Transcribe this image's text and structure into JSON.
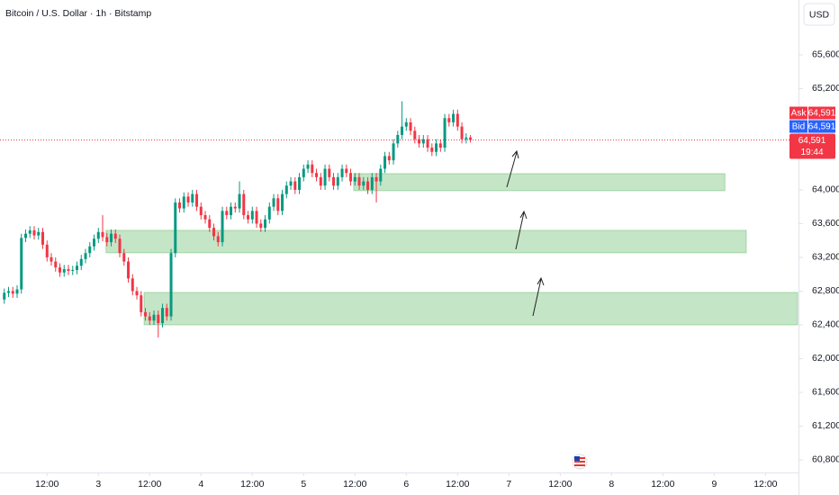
{
  "chart_data": {
    "type": "candlestick",
    "title": "Bitcoin / U.S. Dollar · 1h · Bitstamp",
    "currency": "USD",
    "up_color": "#089981",
    "down_color": "#f23645",
    "xlim": [
      1,
      187.5
    ],
    "ylim": [
      60650,
      66250
    ],
    "xticks": [
      {
        "value": 12,
        "label": "12:00"
      },
      {
        "value": 24,
        "label": "3"
      },
      {
        "value": 36,
        "label": "12:00"
      },
      {
        "value": 48,
        "label": "4"
      },
      {
        "value": 60,
        "label": "12:00"
      },
      {
        "value": 72,
        "label": "5"
      },
      {
        "value": 84,
        "label": "12:00"
      },
      {
        "value": 96,
        "label": "6"
      },
      {
        "value": 108,
        "label": "12:00"
      },
      {
        "value": 120,
        "label": "7"
      },
      {
        "value": 132,
        "label": "12:00"
      },
      {
        "value": 144,
        "label": "8"
      },
      {
        "value": 156,
        "label": "12:00"
      },
      {
        "value": 168,
        "label": "9"
      },
      {
        "value": 180,
        "label": "12:00"
      }
    ],
    "yticks": [
      {
        "value": 60800,
        "label": "60,800"
      },
      {
        "value": 61200,
        "label": "61,200"
      },
      {
        "value": 61600,
        "label": "61,600"
      },
      {
        "value": 62000,
        "label": "62,000"
      },
      {
        "value": 62400,
        "label": "62,400"
      },
      {
        "value": 62800,
        "label": "62,800"
      },
      {
        "value": 63200,
        "label": "63,200"
      },
      {
        "value": 63600,
        "label": "63,600"
      },
      {
        "value": 64000,
        "label": "64,000"
      },
      {
        "value": 65200,
        "label": "65,200"
      },
      {
        "value": 65600,
        "label": "65,600"
      }
    ],
    "x": [
      2,
      3,
      4,
      5,
      6,
      7,
      8,
      9,
      10,
      11,
      12,
      13,
      14,
      15,
      16,
      17,
      18,
      19,
      20,
      21,
      22,
      23,
      24,
      25,
      26,
      27,
      28,
      29,
      30,
      31,
      32,
      33,
      34,
      35,
      36,
      37,
      38,
      39,
      40,
      41,
      42,
      43,
      44,
      45,
      46,
      47,
      48,
      49,
      50,
      51,
      52,
      53,
      54,
      55,
      56,
      57,
      58,
      59,
      60,
      61,
      62,
      63,
      64,
      65,
      66,
      67,
      68,
      69,
      70,
      71,
      72,
      73,
      74,
      75,
      76,
      77,
      78,
      79,
      80,
      81,
      82,
      83,
      84,
      85,
      86,
      87,
      88,
      89,
      90,
      91,
      92,
      93,
      94,
      95,
      96,
      97,
      98,
      99,
      100,
      101,
      102,
      103,
      104,
      105,
      106,
      107,
      108,
      109,
      110,
      111
    ],
    "open": [
      62700,
      62780,
      62800,
      62770,
      62820,
      63430,
      63480,
      63520,
      63460,
      63500,
      63350,
      63200,
      63150,
      63080,
      63020,
      63060,
      63040,
      63050,
      63100,
      63180,
      63250,
      63330,
      63420,
      63500,
      63440,
      63380,
      63480,
      63420,
      63250,
      63150,
      62950,
      62800,
      62750,
      62550,
      62500,
      62450,
      62520,
      62420,
      62600,
      62500,
      63250,
      63850,
      63780,
      63920,
      63850,
      63950,
      63800,
      63700,
      63650,
      63550,
      63450,
      63380,
      63750,
      63700,
      63800,
      63780,
      63950,
      63700,
      63650,
      63750,
      63600,
      63550,
      63650,
      63800,
      63900,
      63750,
      63950,
      64050,
      64100,
      64000,
      64150,
      64250,
      64300,
      64200,
      64150,
      64050,
      64250,
      64150,
      64050,
      64150,
      64250,
      64200,
      64100,
      64150,
      64050,
      64100,
      64000,
      64150,
      64100,
      64250,
      64400,
      64350,
      64550,
      64650,
      64750,
      64800,
      64700,
      64600,
      64550,
      64600,
      64500,
      64450,
      64550,
      64500,
      64850,
      64800,
      64900,
      64750,
      64600,
      64620
    ],
    "high": [
      62830,
      62850,
      62850,
      62870,
      63480,
      63530,
      63570,
      63570,
      63550,
      63550,
      63400,
      63250,
      63200,
      63130,
      63110,
      63110,
      63100,
      63150,
      63230,
      63300,
      63380,
      63470,
      63550,
      63700,
      63490,
      63530,
      63530,
      63470,
      63300,
      63200,
      63000,
      62850,
      62800,
      62600,
      62550,
      62570,
      62570,
      62650,
      62650,
      63300,
      63900,
      63900,
      63970,
      63970,
      64000,
      64000,
      63850,
      63750,
      63700,
      63600,
      63500,
      63800,
      63800,
      63850,
      63850,
      64100,
      64000,
      63750,
      63800,
      63800,
      63650,
      63700,
      63850,
      63950,
      63950,
      64000,
      64100,
      64150,
      64150,
      64200,
      64300,
      64350,
      64350,
      64250,
      64200,
      64300,
      64300,
      64200,
      64200,
      64300,
      64300,
      64250,
      64200,
      64200,
      64150,
      64150,
      64200,
      64200,
      64300,
      64450,
      64450,
      64600,
      64700,
      65050,
      64850,
      64850,
      64750,
      64650,
      64650,
      64650,
      64550,
      64600,
      64600,
      64900,
      64900,
      64950,
      64950,
      64800,
      64670,
      64650
    ],
    "low": [
      62650,
      62730,
      62720,
      62720,
      62770,
      63380,
      63430,
      63410,
      63410,
      63300,
      63150,
      63100,
      63030,
      62970,
      62970,
      62990,
      62990,
      63000,
      63050,
      63130,
      63200,
      63280,
      63370,
      63390,
      63330,
      63330,
      63370,
      63200,
      63100,
      62900,
      62750,
      62700,
      62500,
      62450,
      62400,
      62400,
      62250,
      62370,
      62450,
      62450,
      63200,
      63730,
      63730,
      63800,
      63800,
      63750,
      63650,
      63600,
      63500,
      63400,
      63330,
      63330,
      63650,
      63650,
      63730,
      63730,
      63650,
      63600,
      63600,
      63550,
      63500,
      63500,
      63600,
      63750,
      63700,
      63700,
      63900,
      64000,
      63950,
      63950,
      64100,
      64200,
      64150,
      64100,
      64000,
      64000,
      64100,
      64000,
      64000,
      64100,
      64150,
      64050,
      64050,
      64000,
      64000,
      63950,
      63950,
      63850,
      64050,
      64200,
      64300,
      64300,
      64500,
      64600,
      64700,
      64650,
      64550,
      64500,
      64500,
      64450,
      64400,
      64400,
      64450,
      64450,
      64750,
      64750,
      64700,
      64550,
      64550,
      64560
    ],
    "close": [
      62780,
      62800,
      62770,
      62820,
      63430,
      63480,
      63520,
      63460,
      63500,
      63350,
      63200,
      63150,
      63080,
      63020,
      63060,
      63040,
      63050,
      63100,
      63180,
      63250,
      63330,
      63420,
      63500,
      63440,
      63380,
      63480,
      63420,
      63250,
      63150,
      62950,
      62800,
      62750,
      62550,
      62500,
      62450,
      62520,
      62420,
      62600,
      62500,
      63250,
      63850,
      63780,
      63920,
      63850,
      63950,
      63800,
      63700,
      63650,
      63550,
      63450,
      63380,
      63750,
      63700,
      63800,
      63780,
      63950,
      63700,
      63650,
      63750,
      63600,
      63550,
      63650,
      63800,
      63900,
      63750,
      63950,
      64050,
      64100,
      64000,
      64150,
      64250,
      64300,
      64200,
      64150,
      64050,
      64250,
      64150,
      64050,
      64150,
      64250,
      64200,
      64100,
      64150,
      64050,
      64100,
      64000,
      64150,
      64100,
      64250,
      64400,
      64350,
      64550,
      64650,
      64750,
      64800,
      64700,
      64600,
      64550,
      64600,
      64500,
      64450,
      64550,
      64500,
      64850,
      64800,
      64900,
      64750,
      64600,
      64620,
      64591
    ],
    "zones": [
      {
        "xlim": [
          83.7,
          170.5
        ],
        "ylim": [
          63990,
          64192
        ]
      },
      {
        "xlim": [
          25.8,
          175.5
        ],
        "ylim": [
          63254,
          63520
        ]
      },
      {
        "xlim": [
          34.7,
          187.5
        ],
        "ylim": [
          62400,
          62784
        ]
      }
    ],
    "zone_color": "#4caf50",
    "quotes": [
      {
        "name": "Ask",
        "value": 64591,
        "value_label": "64,591",
        "color": "#f23645"
      },
      {
        "name": "Bid",
        "value": 64591,
        "value_label": "64,591",
        "color": "#2962ff"
      }
    ],
    "last": {
      "value": 64591,
      "value_label": "64,591",
      "countdown": "19:44",
      "color": "#f23645"
    }
  }
}
